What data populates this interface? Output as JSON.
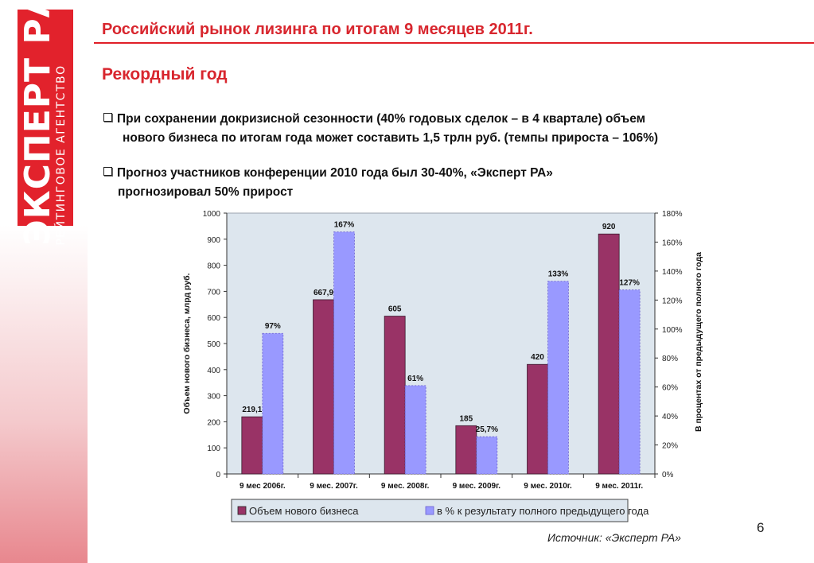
{
  "brand": {
    "name": "ЭКСПЕРТ РА",
    "tagline": "РЕЙТИНГОВОЕ АГЕНТСТВО",
    "color": "#e2222c"
  },
  "slide": {
    "title": "Российский рынок лизинга по итогам 9 месяцев 2011г.",
    "subtitle": "Рекордный год",
    "bullets": [
      {
        "line1": "При сохранении докризисной сезонности (40% годовых сделок – в 4 квартале) объем",
        "line2": "нового бизнеса по итогам года может составить 1,5 трлн руб. (темпы прироста – 106%)"
      },
      {
        "line1": "Прогноз участников конференции 2010 года был 30-40%, «Эксперт РА»",
        "line2": "прогнозировал 50% прирост"
      }
    ],
    "page_number": "6",
    "source": "Источник: «Эксперт РА»",
    "accent_color": "#d8262e"
  },
  "chart_data": {
    "type": "bar",
    "categories": [
      "9 мес 2006г.",
      "9 мес. 2007г.",
      "9 мес. 2008г.",
      "9 мес. 2009г.",
      "9 мес. 2010г.",
      "9 мес. 2011г."
    ],
    "series": [
      {
        "name": "Объем нового бизнеса",
        "axis": "left",
        "color": "#993366",
        "values": [
          219.1,
          667.9,
          605,
          185,
          420,
          920
        ],
        "labels": [
          "219,1",
          "667,9",
          "605",
          "185",
          "420",
          "920"
        ]
      },
      {
        "name": "в % к результату полного предыдущего года",
        "axis": "right",
        "color": "#9999ff",
        "values": [
          97,
          167,
          61,
          25.7,
          133,
          127
        ],
        "labels": [
          "97%",
          "167%",
          "61%",
          "25,7%",
          "133%",
          "127%"
        ]
      }
    ],
    "ylabel": "Объем нового бизнеса, млрд руб.",
    "y2label": "В процентах от предыдущего полного года",
    "ylim": [
      0,
      1000
    ],
    "yticks": [
      "0",
      "100",
      "200",
      "300",
      "400",
      "500",
      "600",
      "700",
      "800",
      "900",
      "1000"
    ],
    "y2lim": [
      0,
      180
    ],
    "y2ticks": [
      "0%",
      "20%",
      "40%",
      "60%",
      "80%",
      "100%",
      "120%",
      "140%",
      "160%",
      "180%"
    ],
    "grid": false,
    "legend_position": "bottom",
    "plot_background": "#dde6ee"
  }
}
